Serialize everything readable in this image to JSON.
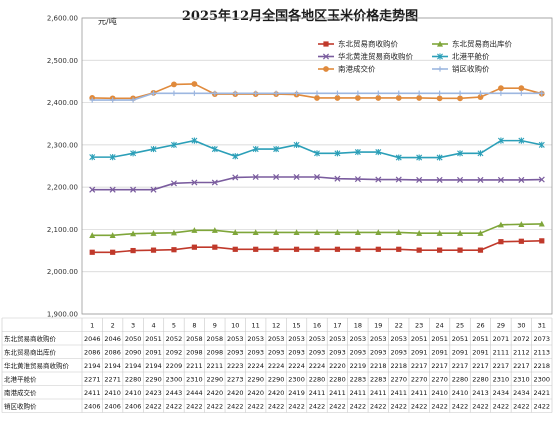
{
  "chart_data": {
    "type": "line",
    "title": "2025年12月全国各地区玉米价格走势图",
    "unit_label": "元/吨",
    "ylim": [
      1900,
      2600
    ],
    "yticks": [
      "1,900.00",
      "2,000.00",
      "2,100.00",
      "2,200.00",
      "2,300.00",
      "2,400.00",
      "2,500.00",
      "2,600.00"
    ],
    "yticks_values": [
      1900,
      2000,
      2100,
      2200,
      2300,
      2400,
      2500,
      2600
    ],
    "grid": true,
    "legend_position": "top-right",
    "categories": [
      "1",
      "2",
      "3",
      "4",
      "5",
      "8",
      "9",
      "10",
      "11",
      "12",
      "15",
      "16",
      "17",
      "18",
      "19",
      "22",
      "23",
      "24",
      "25",
      "26",
      "29",
      "30",
      "31"
    ],
    "series": [
      {
        "name": "东北贸易商收购价",
        "color": "#c0392b",
        "marker": "square",
        "values": [
          2046,
          2046,
          2050,
          2051,
          2052,
          2058,
          2058,
          2053,
          2053,
          2053,
          2053,
          2053,
          2053,
          2053,
          2053,
          2053,
          2051,
          2051,
          2051,
          2051,
          2071,
          2072,
          2073
        ]
      },
      {
        "name": "东北贸易商出库价",
        "color": "#7fa63a",
        "marker": "triangle",
        "values": [
          2086,
          2086,
          2090,
          2091,
          2092,
          2098,
          2098,
          2093,
          2093,
          2093,
          2093,
          2093,
          2093,
          2093,
          2093,
          2093,
          2091,
          2091,
          2091,
          2091,
          2111,
          2112,
          2113
        ]
      },
      {
        "name": "华北黄淮贸易商收购价",
        "color": "#7a5c9e",
        "marker": "x",
        "values": [
          2194,
          2194,
          2194,
          2194,
          2209,
          2211,
          2211,
          2223,
          2224,
          2224,
          2224,
          2224,
          2220,
          2219,
          2218,
          2218,
          2217,
          2217,
          2217,
          2217,
          2217,
          2217,
          2218
        ]
      },
      {
        "name": "北港平舱价",
        "color": "#2b9fb8",
        "marker": "star",
        "values": [
          2271,
          2271,
          2280,
          2290,
          2300,
          2310,
          2290,
          2273,
          2290,
          2290,
          2300,
          2280,
          2280,
          2283,
          2283,
          2270,
          2270,
          2270,
          2280,
          2280,
          2310,
          2310,
          2300
        ]
      },
      {
        "name": "南港成交价",
        "color": "#e08a3c",
        "marker": "circle",
        "values": [
          2411,
          2410,
          2410,
          2423,
          2443,
          2444,
          2420,
          2420,
          2420,
          2420,
          2419,
          2411,
          2411,
          2411,
          2411,
          2411,
          2411,
          2410,
          2410,
          2413,
          2434,
          2434,
          2421
        ]
      },
      {
        "name": "销区收购价",
        "color": "#9db7e0",
        "marker": "plus",
        "values": [
          2406,
          2406,
          2406,
          2422,
          2422,
          2422,
          2422,
          2422,
          2422,
          2422,
          2422,
          2422,
          2422,
          2422,
          2422,
          2422,
          2422,
          2422,
          2422,
          2422,
          2422,
          2422,
          2422
        ]
      }
    ],
    "table_rows": [
      {
        "label": "东北贸易商收购价",
        "cells": [
          "2046",
          "2046",
          "2050",
          "2051",
          "2052",
          "2058",
          "2058",
          "2053",
          "2053",
          "2053",
          "2053",
          "2053",
          "2053",
          "2053",
          "2053",
          "2053",
          "2051",
          "2051",
          "2051",
          "2051",
          "2071",
          "2072",
          "2073"
        ]
      },
      {
        "label": "东北贸易商出库价",
        "cells": [
          "2086",
          "2086",
          "2090",
          "2091",
          "2092",
          "2098",
          "2098",
          "2093",
          "2093",
          "2093",
          "2093",
          "2093",
          "2093",
          "2093",
          "2093",
          "2093",
          "2091",
          "2091",
          "2091",
          "2091",
          "2111",
          "2112",
          "2113"
        ]
      },
      {
        "label": "华北黄淮贸易商收购价",
        "cells": [
          "2194",
          "2194",
          "2194",
          "2194",
          "2209",
          "2211",
          "2211",
          "2223",
          "2224",
          "2224",
          "2224",
          "2224",
          "2220",
          "2219",
          "2218",
          "2218",
          "2217",
          "2217",
          "2217",
          "2217",
          "2217",
          "2217",
          "2218"
        ]
      },
      {
        "label": "北港平舱价",
        "cells": [
          "2271",
          "2271",
          "2280",
          "2290",
          "2300",
          "2310",
          "2290",
          "2273",
          "2290",
          "2290",
          "2300",
          "2280",
          "2280",
          "2283",
          "2283",
          "2270",
          "2270",
          "2270",
          "2280",
          "2280",
          "2310",
          "2310",
          "2300"
        ]
      },
      {
        "label": "南港成交价",
        "cells": [
          "2411",
          "2410",
          "2410",
          "2423",
          "2443",
          "2444",
          "2420",
          "2420",
          "2420",
          "2420",
          "2419",
          "2411",
          "2411",
          "2411",
          "2411",
          "2411",
          "2411",
          "2410",
          "2410",
          "2413",
          "2434",
          "2434",
          "2421"
        ]
      },
      {
        "label": "销区收购价",
        "cells": [
          "2406",
          "2406",
          "2406",
          "2422",
          "2422",
          "2422",
          "2422",
          "2422",
          "2422",
          "2422",
          "2422",
          "2422",
          "2422",
          "2422",
          "2422",
          "2422",
          "2422",
          "2422",
          "2422",
          "2422",
          "2422",
          "2422",
          "2422"
        ]
      }
    ]
  }
}
